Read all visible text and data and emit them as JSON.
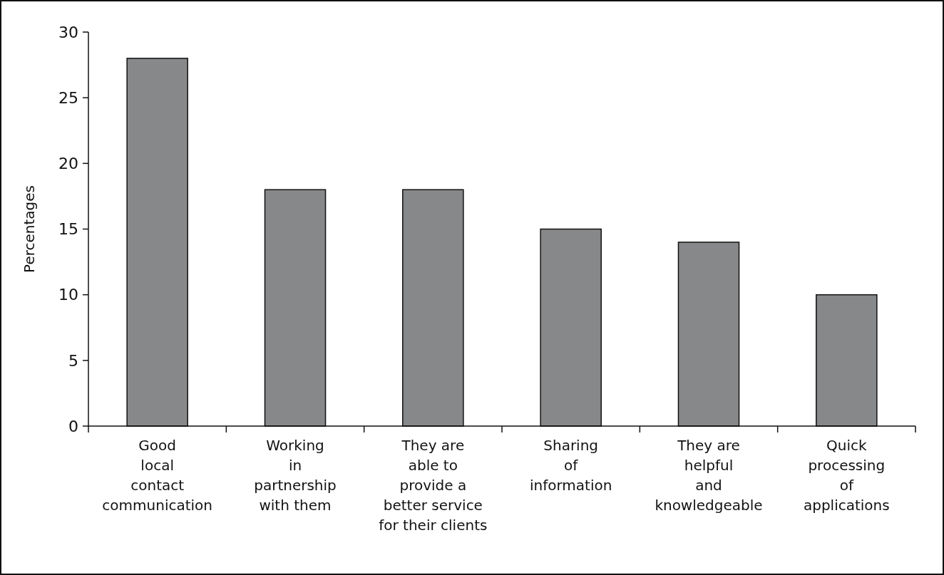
{
  "chart_data": {
    "type": "bar",
    "ylabel": "Percentages",
    "categories": [
      "Good\nlocal\ncontact\ncommunication",
      "Working\nin\npartnership\nwith them",
      "They are\nable to\nprovide a\nbetter service\nfor their clients",
      "Sharing\nof\ninformation",
      "They are\nhelpful\nand\nknowledgeable",
      "Quick\nprocessing\nof\napplications"
    ],
    "values": [
      28,
      18,
      18,
      15,
      14,
      10
    ],
    "color": "#87888a",
    "ylim": [
      0,
      30
    ],
    "yticks": [
      0,
      5,
      10,
      15,
      20,
      25,
      30
    ],
    "grid": false
  }
}
